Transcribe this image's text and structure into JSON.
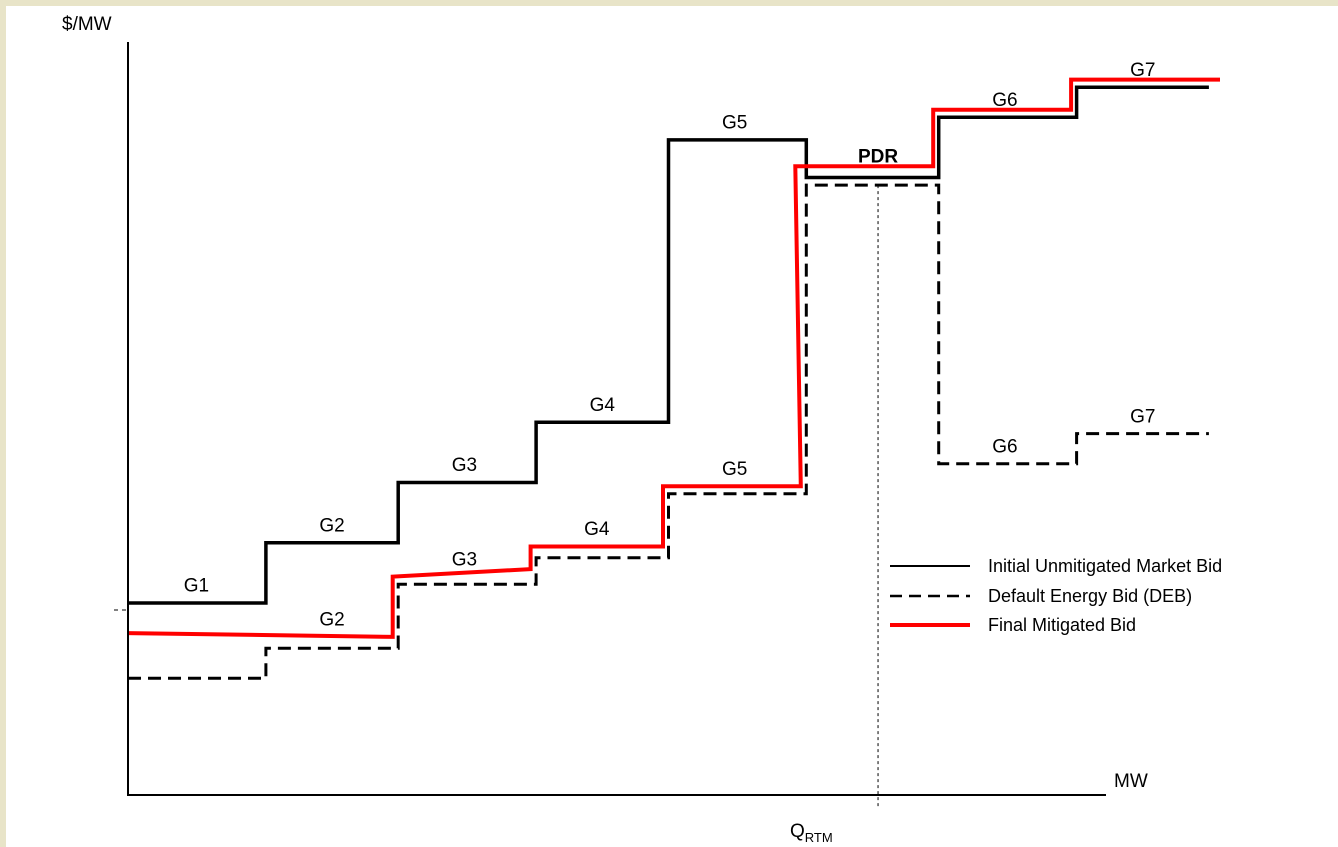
{
  "chart_data": {
    "type": "line",
    "ylabel": "$/MW",
    "xlabel": "MW",
    "marker": {
      "label": "Q",
      "subscript": "RTM",
      "x": 6.8
    },
    "xlim": [
      0,
      10
    ],
    "ylim": [
      0,
      10
    ],
    "series": [
      {
        "name": "Initial Unmitigated Market Bid",
        "color": "#000000",
        "style": "solid",
        "points": [
          [
            0,
            2.55
          ],
          [
            1.25,
            2.55
          ],
          [
            1.25,
            3.35
          ],
          [
            2.45,
            3.35
          ],
          [
            2.45,
            4.15
          ],
          [
            3.7,
            4.15
          ],
          [
            3.7,
            4.95
          ],
          [
            4.9,
            4.95
          ],
          [
            4.9,
            8.7
          ],
          [
            6.15,
            8.7
          ],
          [
            6.15,
            8.2
          ],
          [
            7.35,
            8.2
          ],
          [
            7.35,
            9.0
          ],
          [
            8.6,
            9.0
          ],
          [
            8.6,
            9.4
          ],
          [
            9.8,
            9.4
          ]
        ]
      },
      {
        "name": "Default Energy Bid (DEB)",
        "color": "#000000",
        "style": "dashed",
        "points": [
          [
            0,
            1.55
          ],
          [
            1.25,
            1.55
          ],
          [
            1.25,
            1.95
          ],
          [
            2.45,
            1.95
          ],
          [
            2.45,
            2.8
          ],
          [
            3.7,
            2.8
          ],
          [
            3.7,
            3.15
          ],
          [
            4.9,
            3.15
          ],
          [
            4.9,
            4.0
          ],
          [
            6.15,
            4.0
          ],
          [
            6.15,
            8.1
          ],
          [
            7.35,
            8.1
          ],
          [
            7.35,
            4.4
          ],
          [
            8.6,
            4.4
          ],
          [
            8.6,
            4.8
          ],
          [
            9.8,
            4.8
          ]
        ]
      },
      {
        "name": "Final Mitigated Bid",
        "color": "#ff0000",
        "style": "solid",
        "points": [
          [
            0,
            2.15
          ],
          [
            2.4,
            2.1
          ],
          [
            2.4,
            2.9
          ],
          [
            3.65,
            3.0
          ],
          [
            3.65,
            3.3
          ],
          [
            4.85,
            3.3
          ],
          [
            4.85,
            4.1
          ],
          [
            6.1,
            4.1
          ],
          [
            6.05,
            8.35
          ],
          [
            7.3,
            8.35
          ],
          [
            7.3,
            9.1
          ],
          [
            8.55,
            9.1
          ],
          [
            8.55,
            9.5
          ],
          [
            9.9,
            9.5
          ]
        ]
      }
    ],
    "annotations": [
      {
        "text": "G1",
        "x": 0.62,
        "y": 2.7
      },
      {
        "text": "G2",
        "x": 1.85,
        "y": 3.5
      },
      {
        "text": "G3",
        "x": 3.05,
        "y": 4.3
      },
      {
        "text": "G4",
        "x": 4.3,
        "y": 5.1
      },
      {
        "text": "G5",
        "x": 5.5,
        "y": 8.85
      },
      {
        "text": "PDR",
        "x": 6.8,
        "y": 8.4,
        "bold": true
      },
      {
        "text": "G6",
        "x": 7.95,
        "y": 9.15
      },
      {
        "text": "G7",
        "x": 9.2,
        "y": 9.55
      },
      {
        "text": "G2",
        "x": 1.85,
        "y": 2.25
      },
      {
        "text": "G3",
        "x": 3.05,
        "y": 3.05
      },
      {
        "text": "G4",
        "x": 4.25,
        "y": 3.45
      },
      {
        "text": "G5",
        "x": 5.5,
        "y": 4.25
      },
      {
        "text": "G6",
        "x": 7.95,
        "y": 4.55
      },
      {
        "text": "G7",
        "x": 9.2,
        "y": 4.95
      }
    ],
    "legend_position": "bottom-right",
    "grid": false
  }
}
